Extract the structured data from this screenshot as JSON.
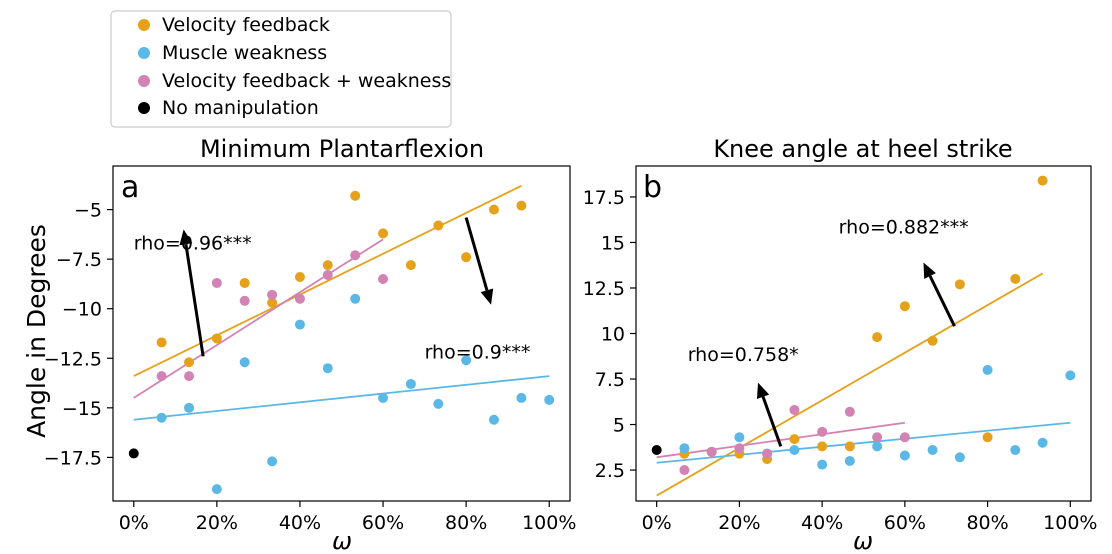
{
  "figure": {
    "ylabel_shared": "Angle in Degrees",
    "legend": {
      "placement": "top-left",
      "items": [
        {
          "label": "Velocity feedback",
          "color": "#E6A11A"
        },
        {
          "label": "Muscle weakness",
          "color": "#5BB8E6"
        },
        {
          "label": "Velocity feedback + weakness",
          "color": "#D283B4"
        },
        {
          "label": "No manipulation",
          "color": "#000000"
        }
      ]
    }
  },
  "chart_data": [
    {
      "type": "scatter",
      "panel_letter": "a",
      "title": "Minimum Plantarflexion",
      "xlabel": "ω",
      "xlim": [
        -0.05,
        1.05
      ],
      "ylim": [
        -19.7,
        -2.8
      ],
      "xticks": [
        0,
        0.2,
        0.4,
        0.6,
        0.8,
        1.0
      ],
      "xtick_labels": [
        "0%",
        "20%",
        "40%",
        "60%",
        "80%",
        "100%"
      ],
      "yticks": [
        -17.5,
        -15,
        -12.5,
        -10,
        -7.5,
        -5
      ],
      "ytick_labels": [
        "−17.5",
        "−15",
        "−12.5",
        "−10",
        "−7.5",
        "−5"
      ],
      "grid": false,
      "series": [
        {
          "name": "Velocity feedback",
          "color": "#E6A11A",
          "x": [
            0.067,
            0.133,
            0.2,
            0.267,
            0.333,
            0.4,
            0.467,
            0.533,
            0.6,
            0.667,
            0.733,
            0.8,
            0.867,
            0.933
          ],
          "y": [
            -11.7,
            -12.7,
            -11.5,
            -8.7,
            -9.7,
            -8.4,
            -7.8,
            -4.3,
            -6.2,
            -7.8,
            -5.8,
            -7.4,
            -5.0,
            -4.8
          ],
          "fit": {
            "x": [
              0,
              0.933
            ],
            "y": [
              -13.4,
              -3.8
            ]
          }
        },
        {
          "name": "Muscle weakness",
          "color": "#5BB8E6",
          "x": [
            0.067,
            0.133,
            0.2,
            0.267,
            0.333,
            0.4,
            0.467,
            0.533,
            0.6,
            0.667,
            0.733,
            0.8,
            0.867,
            0.933,
            1.0
          ],
          "y": [
            -15.5,
            -15.0,
            -19.1,
            -12.7,
            -17.7,
            -10.8,
            -13.0,
            -9.5,
            -14.5,
            -13.8,
            -14.8,
            -12.6,
            -15.6,
            -14.5,
            -14.6
          ],
          "fit": {
            "x": [
              0,
              1.0
            ],
            "y": [
              -15.6,
              -13.4
            ]
          }
        },
        {
          "name": "Velocity feedback + weakness",
          "color": "#D283B4",
          "x": [
            0.067,
            0.133,
            0.2,
            0.267,
            0.333,
            0.4,
            0.467,
            0.533,
            0.6
          ],
          "y": [
            -13.4,
            -13.4,
            -8.7,
            -9.6,
            -9.3,
            -9.5,
            -8.3,
            -7.3,
            -8.5
          ],
          "fit": {
            "x": [
              0,
              0.6
            ],
            "y": [
              -14.5,
              -6.5
            ]
          }
        },
        {
          "name": "No manipulation",
          "color": "#000000",
          "x": [
            0
          ],
          "y": [
            -17.3
          ]
        }
      ],
      "annotations": [
        {
          "text": "rho=0.96***",
          "x": 0.0,
          "y": -7.0,
          "arrow_from": [
            0.167,
            -12.4
          ],
          "arrow_to": [
            0.12,
            -6.0
          ]
        },
        {
          "text": "rho=0.9***",
          "x": 0.7,
          "y": -12.5,
          "arrow_from": [
            0.8,
            -5.4
          ],
          "arrow_to": [
            0.86,
            -9.8
          ]
        }
      ]
    },
    {
      "type": "scatter",
      "panel_letter": "b",
      "title": "Knee angle at heel strike",
      "xlabel": "ω",
      "xlim": [
        -0.05,
        1.05
      ],
      "ylim": [
        0.8,
        19.2
      ],
      "xticks": [
        0,
        0.2,
        0.4,
        0.6,
        0.8,
        1.0
      ],
      "xtick_labels": [
        "0%",
        "20%",
        "40%",
        "60%",
        "80%",
        "100%"
      ],
      "yticks": [
        2.5,
        5,
        7.5,
        10,
        12.5,
        15,
        17.5
      ],
      "ytick_labels": [
        "2.5",
        "5",
        "7.5",
        "10",
        "12.5",
        "15",
        "17.5"
      ],
      "grid": false,
      "series": [
        {
          "name": "Velocity feedback",
          "color": "#E6A11A",
          "x": [
            0.067,
            0.133,
            0.2,
            0.267,
            0.333,
            0.4,
            0.467,
            0.533,
            0.6,
            0.667,
            0.733,
            0.8,
            0.867,
            0.933
          ],
          "y": [
            3.4,
            3.5,
            3.4,
            3.1,
            4.2,
            3.8,
            3.8,
            9.8,
            11.5,
            9.6,
            12.7,
            4.3,
            13.0,
            18.4
          ],
          "fit": {
            "x": [
              0,
              0.933
            ],
            "y": [
              1.1,
              13.3
            ]
          }
        },
        {
          "name": "Muscle weakness",
          "color": "#5BB8E6",
          "x": [
            0.067,
            0.133,
            0.2,
            0.267,
            0.333,
            0.4,
            0.467,
            0.533,
            0.6,
            0.667,
            0.733,
            0.8,
            0.867,
            0.933,
            1.0
          ],
          "y": [
            3.7,
            3.5,
            4.3,
            3.4,
            3.6,
            2.8,
            3.0,
            3.8,
            3.3,
            3.6,
            3.2,
            8.0,
            3.6,
            4.0,
            7.7
          ],
          "fit": {
            "x": [
              0,
              1.0
            ],
            "y": [
              2.9,
              5.1
            ]
          }
        },
        {
          "name": "Velocity feedback + weakness",
          "color": "#D283B4",
          "x": [
            0.067,
            0.133,
            0.2,
            0.267,
            0.333,
            0.4,
            0.467,
            0.533,
            0.6
          ],
          "y": [
            2.5,
            3.5,
            3.7,
            3.4,
            5.8,
            4.6,
            5.7,
            4.3,
            4.3
          ],
          "fit": {
            "x": [
              0,
              0.6
            ],
            "y": [
              3.2,
              5.1
            ]
          }
        },
        {
          "name": "No manipulation",
          "color": "#000000",
          "x": [
            0
          ],
          "y": [
            3.6
          ]
        }
      ],
      "annotations": [
        {
          "text": "rho=0.882***",
          "x": 0.44,
          "y": 15.5,
          "arrow_from": [
            0.72,
            10.4
          ],
          "arrow_to": [
            0.645,
            13.9
          ]
        },
        {
          "text": "rho=0.758*",
          "x": 0.075,
          "y": 8.5,
          "arrow_from": [
            0.3,
            3.8
          ],
          "arrow_to": [
            0.245,
            7.3
          ]
        }
      ]
    }
  ]
}
